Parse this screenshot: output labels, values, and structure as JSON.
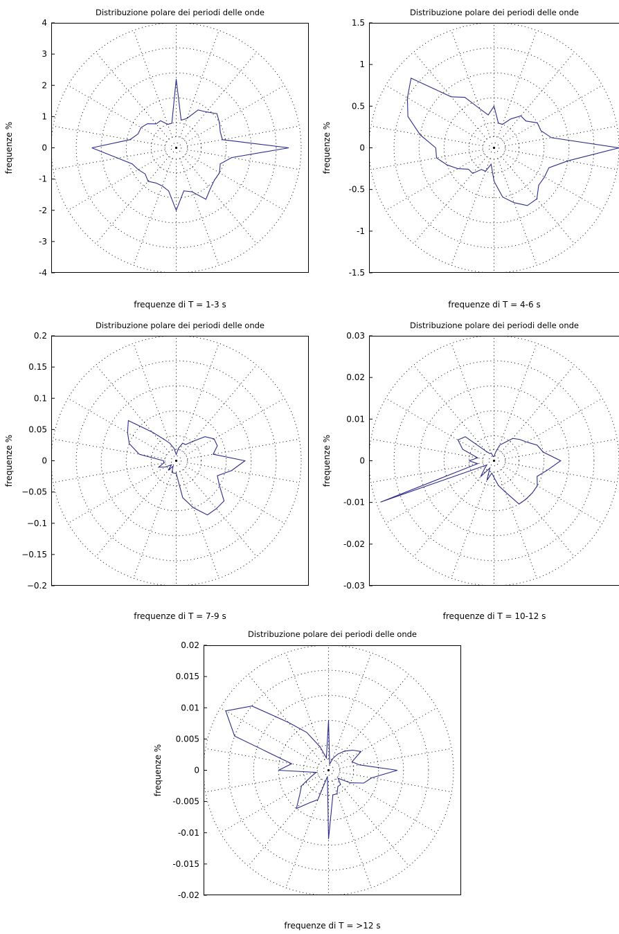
{
  "chart_data": [
    {
      "type": "line",
      "title": "Distribuzione polare dei periodi delle onde",
      "xlabel": "frequenze di T = 1-3 s",
      "ylabel": "frequenze %",
      "ylim": [
        -4,
        4
      ],
      "yticks": [
        "4",
        "3",
        "2",
        "1",
        "0",
        "-1",
        "-2",
        "-3",
        "-4"
      ],
      "grid": "polar",
      "series": [
        {
          "color": "#2b2b8c",
          "angles_deg": [
            0,
            10,
            20,
            30,
            40,
            50,
            60,
            70,
            80,
            90,
            100,
            110,
            120,
            130,
            140,
            150,
            160,
            170,
            180,
            190,
            200,
            210,
            220,
            230,
            240,
            250,
            260,
            270,
            280,
            290,
            300,
            310,
            320,
            330,
            340,
            350
          ],
          "radius": [
            2.7,
            1.5,
            1.3,
            1.3,
            1.2,
            1.0,
            1.0,
            0.8,
            0.8,
            2.2,
            0.9,
            1.0,
            1.4,
            1.5,
            1.7,
            1.6,
            1.5,
            1.5,
            3.6,
            1.8,
            1.5,
            1.6,
            1.6,
            1.7,
            1.9,
            1.5,
            1.4,
            2.0,
            1.4,
            1.3,
            1.3,
            1.4,
            1.3,
            1.4,
            1.5,
            1.9
          ]
        }
      ]
    },
    {
      "type": "line",
      "title": "Distribuzione polare dei periodi delle onde",
      "xlabel": "frequenze di T = 4-6 s",
      "ylabel": "frequenze %",
      "ylim": [
        -1.5,
        1.5
      ],
      "yticks": [
        "1.5",
        "1",
        "0.5",
        "0",
        "-0.5",
        "-1",
        "-1.5"
      ],
      "grid": "polar",
      "series": [
        {
          "color": "#2b2b8c",
          "angles_deg": [
            0,
            10,
            20,
            30,
            40,
            50,
            60,
            70,
            80,
            90,
            100,
            110,
            120,
            130,
            140,
            150,
            160,
            170,
            180,
            190,
            200,
            210,
            220,
            230,
            240,
            250,
            260,
            270,
            280,
            290,
            300,
            310,
            320,
            330,
            340,
            350
          ],
          "radius": [
            0.7,
            0.9,
            1.1,
            1.2,
            1.3,
            0.8,
            0.7,
            0.5,
            0.4,
            0.5,
            0.3,
            0.3,
            0.4,
            0.5,
            0.5,
            0.6,
            0.6,
            0.7,
            1.5,
            0.9,
            0.7,
            0.7,
            0.7,
            0.8,
            0.8,
            0.7,
            0.6,
            0.4,
            0.2,
            0.3,
            0.3,
            0.4,
            0.4,
            0.5,
            0.6,
            0.7
          ]
        }
      ]
    },
    {
      "type": "line",
      "title": "Distribuzione polare dei periodi delle onde",
      "xlabel": "frequenze di T = 7-9 s",
      "ylabel": "frequenze %",
      "ylim": [
        -0.2,
        0.2
      ],
      "yticks": [
        "0.2",
        "0.15",
        "0.1",
        "0.05",
        "0",
        "−0.05",
        "−0.1",
        "−0.15",
        "−0.2"
      ],
      "grid": "polar",
      "series": [
        {
          "color": "#2b2b8c",
          "angles_deg": [
            0,
            10,
            20,
            30,
            40,
            50,
            60,
            70,
            80,
            90,
            100,
            110,
            120,
            130,
            140,
            150,
            160,
            170,
            180,
            190,
            200,
            210,
            220,
            230,
            240,
            250,
            260,
            270,
            280,
            290,
            300,
            310,
            320,
            330,
            340,
            350
          ],
          "radius": [
            0.02,
            0.06,
            0.08,
            0.09,
            0.1,
            0.06,
            0.04,
            0.03,
            0.02,
            0.01,
            0.02,
            0.03,
            0.03,
            0.04,
            0.06,
            0.07,
            0.07,
            0.06,
            0.11,
            0.09,
            0.07,
            0.08,
            0.1,
            0.1,
            0.1,
            0.08,
            0.06,
            0.02,
            0.02,
            0.02,
            0.01,
            0.02,
            0.01,
            0.02,
            0.03,
            0.02
          ]
        }
      ]
    },
    {
      "type": "line",
      "title": "Distribuzione polare dei periodi delle onde",
      "xlabel": "frequenze di T = 10-12 s",
      "ylabel": "frequenze %",
      "ylim": [
        -0.03,
        0.03
      ],
      "yticks": [
        "0.03",
        "0.02",
        "0.01",
        "0",
        "-0.01",
        "-0.02",
        "-0.03"
      ],
      "grid": "polar",
      "series": [
        {
          "color": "#2b2b8c",
          "angles_deg": [
            0,
            10,
            20,
            30,
            40,
            50,
            60,
            70,
            80,
            90,
            100,
            110,
            120,
            130,
            140,
            150,
            160,
            170,
            180,
            190,
            200,
            210,
            220,
            230,
            240,
            250,
            260,
            270,
            280,
            290,
            300,
            310,
            320,
            330,
            340,
            350
          ],
          "radius": [
            0.006,
            0.004,
            0.008,
            0.01,
            0.009,
            0.003,
            0.002,
            0.002,
            0.001,
            0.001,
            0.002,
            0.004,
            0.005,
            0.007,
            0.008,
            0.009,
            0.011,
            0.012,
            0.016,
            0.013,
            0.011,
            0.012,
            0.012,
            0.012,
            0.012,
            0.008,
            0.006,
            0.004,
            0.003,
            0.005,
            0.002,
            0.005,
            0.003,
            0.002,
            0.029,
            0.004
          ]
        }
      ]
    },
    {
      "type": "line",
      "title": "Distribuzione polare dei periodi delle onde",
      "xlabel": "frequenze di T = >12 s",
      "ylabel": "frequenze %",
      "ylim": [
        -0.02,
        0.02
      ],
      "yticks": [
        "0.02",
        "0.015",
        "0.01",
        "0.005",
        "0",
        "-0.005",
        "-0.01",
        "-0.015",
        "-0.02"
      ],
      "grid": "polar",
      "series": [
        {
          "color": "#2b2b8c",
          "angles_deg": [
            0,
            10,
            20,
            30,
            40,
            50,
            60,
            70,
            80,
            90,
            100,
            110,
            120,
            130,
            140,
            150,
            160,
            170,
            180,
            190,
            200,
            210,
            220,
            230,
            240,
            250,
            260,
            270,
            280,
            290,
            300,
            310,
            320,
            330,
            340,
            350
          ],
          "radius": [
            0.008,
            0.006,
            0.016,
            0.019,
            0.016,
            0.01,
            0.007,
            0.004,
            0.002,
            0.008,
            0.001,
            0.002,
            0.003,
            0.004,
            0.005,
            0.006,
            0.004,
            0.005,
            0.011,
            0.007,
            0.006,
            0.004,
            0.002,
            0.003,
            0.003,
            0.004,
            0.004,
            0.011,
            0.001,
            0.005,
            0.006,
            0.008,
            0.006,
            0.005,
            0.003,
            0.002
          ]
        }
      ]
    }
  ]
}
